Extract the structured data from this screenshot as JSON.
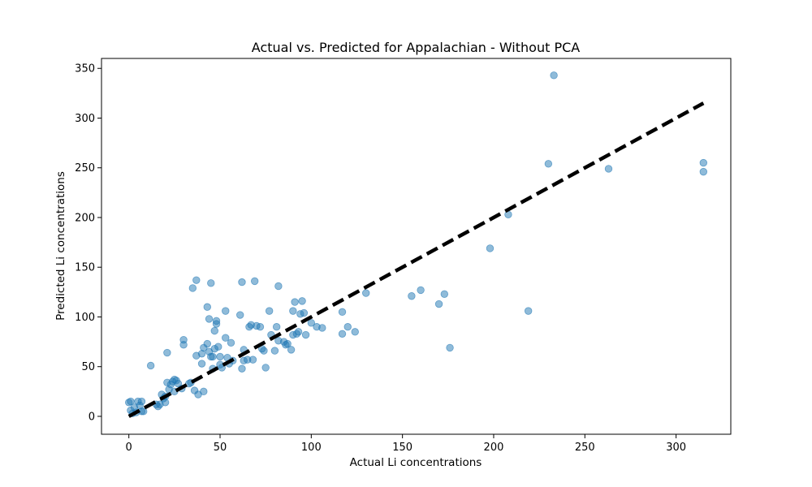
{
  "chart_data": {
    "type": "scatter",
    "title": "Actual vs. Predicted for Appalachian - Without PCA",
    "xlabel": "Actual Li concentrations",
    "ylabel": "Predicted Li concentrations",
    "xlim": [
      -15,
      330
    ],
    "ylim": [
      -18,
      360
    ],
    "xticks": [
      0,
      50,
      100,
      150,
      200,
      250,
      300
    ],
    "yticks": [
      0,
      50,
      100,
      150,
      200,
      250,
      300,
      350
    ],
    "grid": false,
    "colors": {
      "points": "#1f77b4",
      "reference_line": "#000000"
    },
    "reference_line": {
      "style": "dashed",
      "x": [
        0,
        315
      ],
      "y": [
        0,
        315
      ]
    },
    "points": [
      [
        0,
        14
      ],
      [
        1,
        15
      ],
      [
        1,
        6
      ],
      [
        2,
        3
      ],
      [
        3,
        9
      ],
      [
        4,
        4
      ],
      [
        5,
        15
      ],
      [
        6,
        11
      ],
      [
        7,
        15
      ],
      [
        7,
        5
      ],
      [
        8,
        5
      ],
      [
        12,
        51
      ],
      [
        15,
        12
      ],
      [
        16,
        10
      ],
      [
        17,
        12
      ],
      [
        18,
        22
      ],
      [
        19,
        18
      ],
      [
        20,
        20
      ],
      [
        20,
        14
      ],
      [
        21,
        64
      ],
      [
        21,
        34
      ],
      [
        22,
        27
      ],
      [
        23,
        32
      ],
      [
        24,
        35
      ],
      [
        25,
        37
      ],
      [
        25,
        25
      ],
      [
        26,
        36
      ],
      [
        27,
        33
      ],
      [
        29,
        28
      ],
      [
        30,
        77
      ],
      [
        30,
        72
      ],
      [
        33,
        33
      ],
      [
        34,
        34
      ],
      [
        35,
        129
      ],
      [
        36,
        26
      ],
      [
        37,
        137
      ],
      [
        37,
        61
      ],
      [
        38,
        22
      ],
      [
        40,
        63
      ],
      [
        40,
        53
      ],
      [
        41,
        69
      ],
      [
        41,
        25
      ],
      [
        43,
        73
      ],
      [
        43,
        110
      ],
      [
        44,
        98
      ],
      [
        44,
        65
      ],
      [
        45,
        134
      ],
      [
        45,
        60
      ],
      [
        46,
        48
      ],
      [
        46,
        60
      ],
      [
        47,
        68
      ],
      [
        47,
        86
      ],
      [
        48,
        96
      ],
      [
        48,
        93
      ],
      [
        49,
        70
      ],
      [
        50,
        60
      ],
      [
        50,
        52
      ],
      [
        51,
        49
      ],
      [
        53,
        106
      ],
      [
        53,
        79
      ],
      [
        54,
        59
      ],
      [
        55,
        53
      ],
      [
        56,
        74
      ],
      [
        57,
        56
      ],
      [
        61,
        102
      ],
      [
        62,
        135
      ],
      [
        62,
        48
      ],
      [
        63,
        56
      ],
      [
        63,
        67
      ],
      [
        65,
        57
      ],
      [
        66,
        90
      ],
      [
        67,
        92
      ],
      [
        68,
        57
      ],
      [
        69,
        136
      ],
      [
        70,
        91
      ],
      [
        72,
        90
      ],
      [
        73,
        68
      ],
      [
        74,
        66
      ],
      [
        75,
        49
      ],
      [
        77,
        106
      ],
      [
        78,
        82
      ],
      [
        80,
        66
      ],
      [
        81,
        90
      ],
      [
        82,
        76
      ],
      [
        82,
        131
      ],
      [
        85,
        75
      ],
      [
        86,
        72
      ],
      [
        87,
        73
      ],
      [
        89,
        67
      ],
      [
        90,
        106
      ],
      [
        90,
        82
      ],
      [
        91,
        115
      ],
      [
        92,
        83
      ],
      [
        93,
        85
      ],
      [
        94,
        103
      ],
      [
        95,
        116
      ],
      [
        96,
        104
      ],
      [
        97,
        82
      ],
      [
        100,
        94
      ],
      [
        103,
        90
      ],
      [
        106,
        89
      ],
      [
        117,
        105
      ],
      [
        117,
        83
      ],
      [
        120,
        90
      ],
      [
        124,
        85
      ],
      [
        130,
        124
      ],
      [
        155,
        121
      ],
      [
        160,
        127
      ],
      [
        170,
        113
      ],
      [
        173,
        123
      ],
      [
        176,
        69
      ],
      [
        198,
        169
      ],
      [
        208,
        203
      ],
      [
        219,
        106
      ],
      [
        230,
        254
      ],
      [
        233,
        343
      ],
      [
        263,
        249
      ],
      [
        315,
        255
      ],
      [
        315,
        246
      ]
    ]
  }
}
